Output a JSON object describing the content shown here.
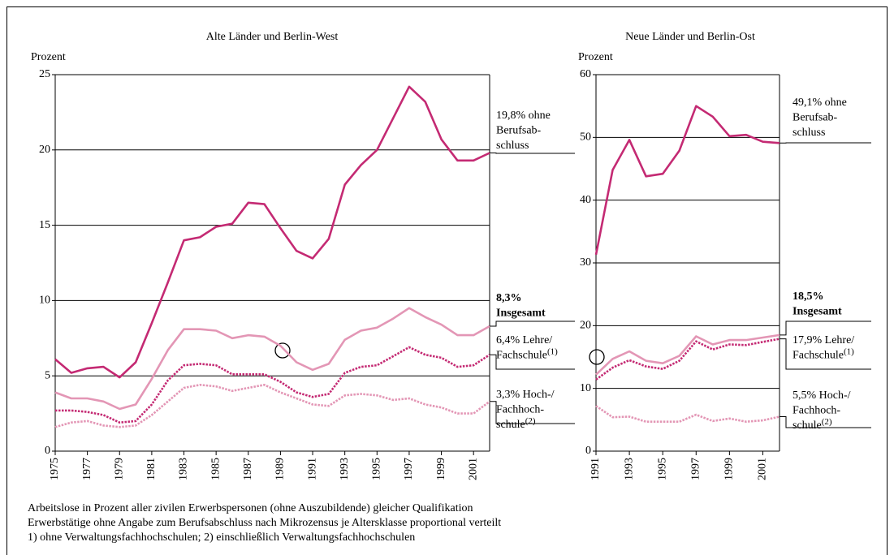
{
  "chart_data": [
    {
      "type": "line",
      "title": "Alte Länder und Berlin-West",
      "y_label": "Prozent",
      "x": [
        1975,
        1976,
        1977,
        1978,
        1979,
        1980,
        1981,
        1982,
        1983,
        1984,
        1985,
        1986,
        1987,
        1988,
        1989,
        1990,
        1991,
        1992,
        1993,
        1994,
        1995,
        1996,
        1997,
        1998,
        1999,
        2000,
        2001,
        2002
      ],
      "xlim": [
        1975,
        2002
      ],
      "xticks": [
        1975,
        1977,
        1979,
        1981,
        1983,
        1985,
        1987,
        1989,
        1991,
        1993,
        1995,
        1997,
        1999,
        2001
      ],
      "ylim": [
        0,
        25
      ],
      "yticks": [
        0,
        5,
        10,
        15,
        20,
        25
      ],
      "grid": true,
      "series": [
        {
          "color": "#c42a73",
          "style": "solid",
          "label_lines": [
            "19,8% ohne",
            "Berufsab-",
            "schluss"
          ],
          "values": [
            6.1,
            5.2,
            5.5,
            5.6,
            4.9,
            5.9,
            8.5,
            11.2,
            14.0,
            14.2,
            14.9,
            15.1,
            16.5,
            16.4,
            14.8,
            13.3,
            12.8,
            14.1,
            17.7,
            19.0,
            20.0,
            22.1,
            24.2,
            23.2,
            20.7,
            19.3,
            19.3,
            19.8
          ]
        },
        {
          "color": "#e396b5",
          "style": "solid",
          "label_lines": [
            "8,3%",
            "Insgesamt"
          ],
          "label_bold": true,
          "values": [
            3.9,
            3.5,
            3.5,
            3.3,
            2.8,
            3.1,
            4.8,
            6.7,
            8.1,
            8.1,
            8.0,
            7.5,
            7.7,
            7.6,
            7.0,
            5.9,
            5.4,
            5.8,
            7.4,
            8.0,
            8.2,
            8.8,
            9.5,
            8.9,
            8.4,
            7.7,
            7.7,
            8.3
          ]
        },
        {
          "color": "#c42a73",
          "style": "dotted",
          "label_lines": [
            "6,4% Lehre/",
            "Fachschule"
          ],
          "label_sup": "(1)",
          "values": [
            2.7,
            2.7,
            2.6,
            2.4,
            1.9,
            2.0,
            3.1,
            4.7,
            5.7,
            5.8,
            5.7,
            5.1,
            5.1,
            5.1,
            4.6,
            3.9,
            3.6,
            3.8,
            5.2,
            5.6,
            5.7,
            6.3,
            6.9,
            6.4,
            6.2,
            5.6,
            5.7,
            6.4
          ]
        },
        {
          "color": "#e396b5",
          "style": "dotted",
          "label_lines": [
            "3,3% Hoch-/",
            "Fachhoch-",
            "schule"
          ],
          "label_sup": "(2)",
          "values": [
            1.6,
            1.9,
            2.0,
            1.7,
            1.6,
            1.7,
            2.4,
            3.3,
            4.2,
            4.4,
            4.3,
            4.0,
            4.2,
            4.4,
            3.9,
            3.5,
            3.1,
            3.0,
            3.7,
            3.8,
            3.7,
            3.4,
            3.5,
            3.1,
            2.9,
            2.5,
            2.5,
            3.3
          ]
        }
      ]
    },
    {
      "type": "line",
      "title": "Neue Länder und Berlin-Ost",
      "y_label": "Prozent",
      "x": [
        1991,
        1992,
        1993,
        1994,
        1995,
        1996,
        1997,
        1998,
        1999,
        2000,
        2001,
        2002
      ],
      "xlim": [
        1991,
        2002
      ],
      "xticks": [
        1991,
        1993,
        1995,
        1997,
        1999,
        2001
      ],
      "ylim": [
        0,
        60
      ],
      "yticks": [
        0,
        10,
        20,
        30,
        40,
        50,
        60
      ],
      "grid": true,
      "series": [
        {
          "color": "#c42a73",
          "style": "solid",
          "label_lines": [
            "49,1% ohne",
            "Berufsab-",
            "schluss"
          ],
          "values": [
            31.3,
            44.8,
            49.6,
            43.8,
            44.2,
            47.9,
            55.0,
            53.3,
            50.2,
            50.4,
            49.3,
            49.1
          ]
        },
        {
          "color": "#e396b5",
          "style": "solid",
          "label_lines": [
            "18,5%",
            "Insgesamt"
          ],
          "label_bold": true,
          "values": [
            12.2,
            14.7,
            15.9,
            14.4,
            14.0,
            15.2,
            18.3,
            17.0,
            17.7,
            17.7,
            18.1,
            18.5
          ]
        },
        {
          "color": "#c42a73",
          "style": "dotted",
          "label_lines": [
            "17,9% Lehre/",
            "Fachschule"
          ],
          "label_sup": "(1)",
          "values": [
            11.4,
            13.3,
            14.5,
            13.5,
            13.1,
            14.4,
            17.5,
            16.2,
            17.0,
            16.9,
            17.4,
            17.9
          ]
        },
        {
          "color": "#e396b5",
          "style": "dotted",
          "label_lines": [
            "5,5% Hoch-/",
            "Fachhoch-",
            "schule"
          ],
          "label_sup": "(2)",
          "values": [
            7.2,
            5.4,
            5.5,
            4.7,
            4.7,
            4.7,
            5.8,
            4.8,
            5.2,
            4.7,
            4.9,
            5.5
          ]
        }
      ]
    }
  ],
  "notes": [
    "Arbeitslose in Prozent aller zivilen Erwerbspersonen (ohne Auszubildende) gleicher Qualifikation",
    "Erwerbstätige ohne Angabe zum Berufsabschluss nach Mikrozensus je Altersklasse proportional verteilt",
    "1) ohne Verwaltungsfachhochschulen; 2) einschließlich Verwaltungsfachhochschulen"
  ]
}
